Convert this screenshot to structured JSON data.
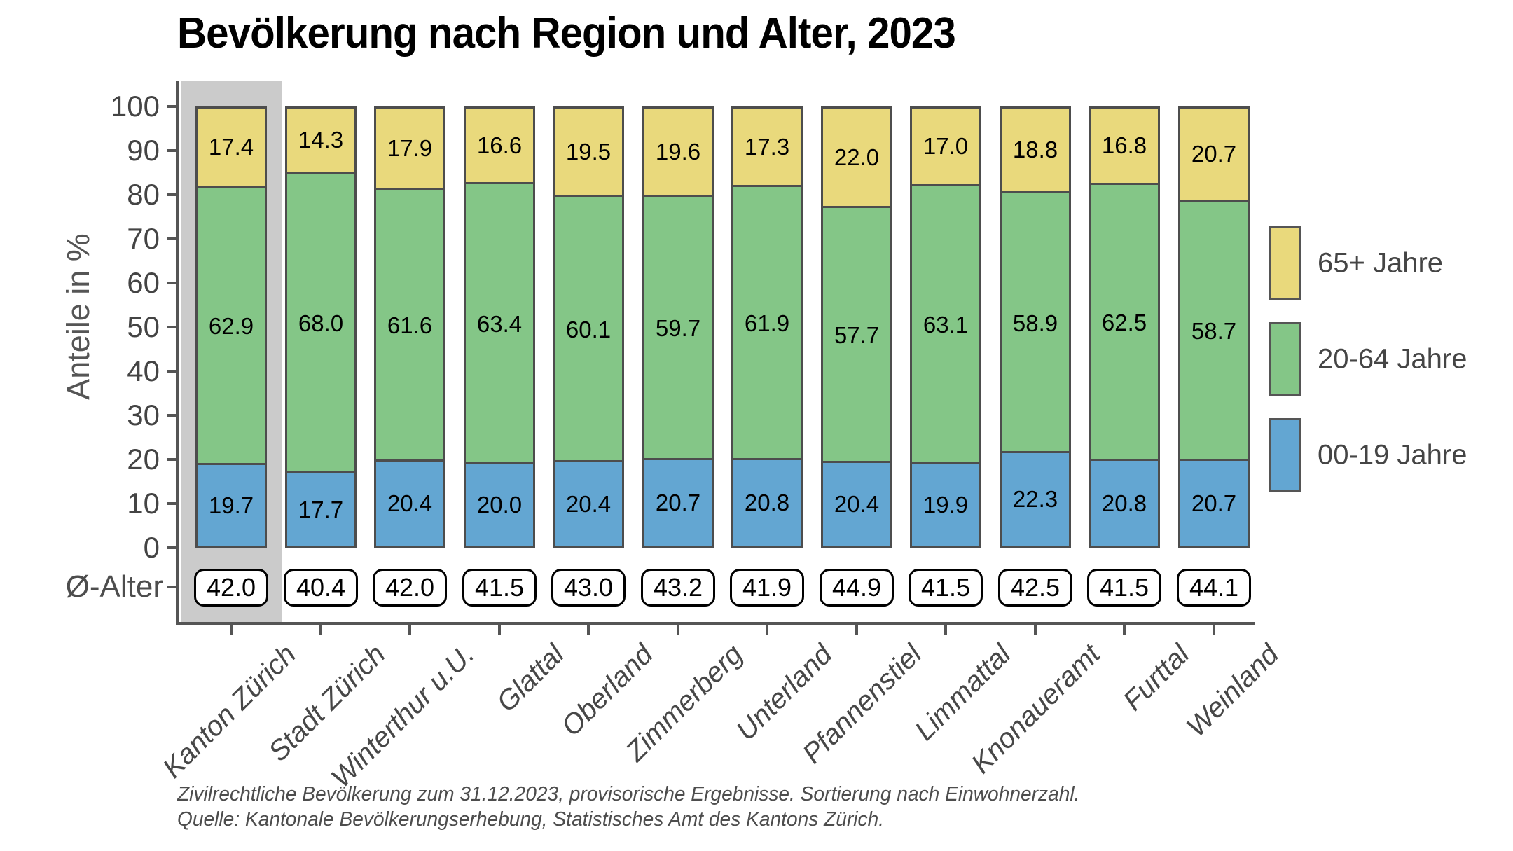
{
  "title": "Bevölkerung nach Region und Alter, 2023",
  "footnotes": [
    "Zivilrechtliche Bevölkerung zum 31.12.2023, provisorische Ergebnisse. Sortierung nach Einwohnerzahl.",
    "Quelle: Kantonale Bevölkerungserhebung, Statistisches Amt des Kantons Zürich."
  ],
  "colors": {
    "age_65_plus": "#E9D97C",
    "age_20_64": "#84C687",
    "age_00_19": "#63A6D2",
    "highlight_band": "#CBCBCB",
    "axis": "#555555",
    "bar_border": "#4d4d4d"
  },
  "chart_data": {
    "type": "bar",
    "stacked": true,
    "stack_order": "top_to_bottom",
    "title": "Bevölkerung nach Region und Alter, 2023",
    "ylabel": "Anteile in %",
    "ylim": [
      0,
      100
    ],
    "yticks": [
      0,
      10,
      20,
      30,
      40,
      50,
      60,
      70,
      80,
      90,
      100
    ],
    "grid": false,
    "legend_position": "right",
    "categories": [
      "Kanton Zürich",
      "Stadt Zürich",
      "Winterthur u.U.",
      "Glattal",
      "Oberland",
      "Zimmerberg",
      "Unterland",
      "Pfannenstiel",
      "Limmattal",
      "Knonaueramt",
      "Furttal",
      "Weinland"
    ],
    "series": [
      {
        "name": "65+ Jahre",
        "color": "#E9D97C",
        "values": [
          17.4,
          14.3,
          17.9,
          16.6,
          19.5,
          19.6,
          17.3,
          22.0,
          17.0,
          18.8,
          16.8,
          20.7
        ]
      },
      {
        "name": "20-64 Jahre",
        "color": "#84C687",
        "values": [
          62.9,
          68.0,
          61.6,
          63.4,
          60.1,
          59.7,
          61.9,
          57.7,
          63.1,
          58.9,
          62.5,
          58.7
        ]
      },
      {
        "name": "00-19 Jahre",
        "color": "#63A6D2",
        "values": [
          19.7,
          17.7,
          20.4,
          20.0,
          20.4,
          20.7,
          20.8,
          20.4,
          19.9,
          22.3,
          20.8,
          20.7
        ]
      }
    ],
    "avg_age_row": {
      "label": "Ø-Alter",
      "values": [
        42.0,
        40.4,
        42.0,
        41.5,
        43.0,
        43.2,
        41.9,
        44.9,
        41.5,
        42.5,
        41.5,
        44.1
      ]
    },
    "highlighted_category": "Kanton Zürich"
  }
}
